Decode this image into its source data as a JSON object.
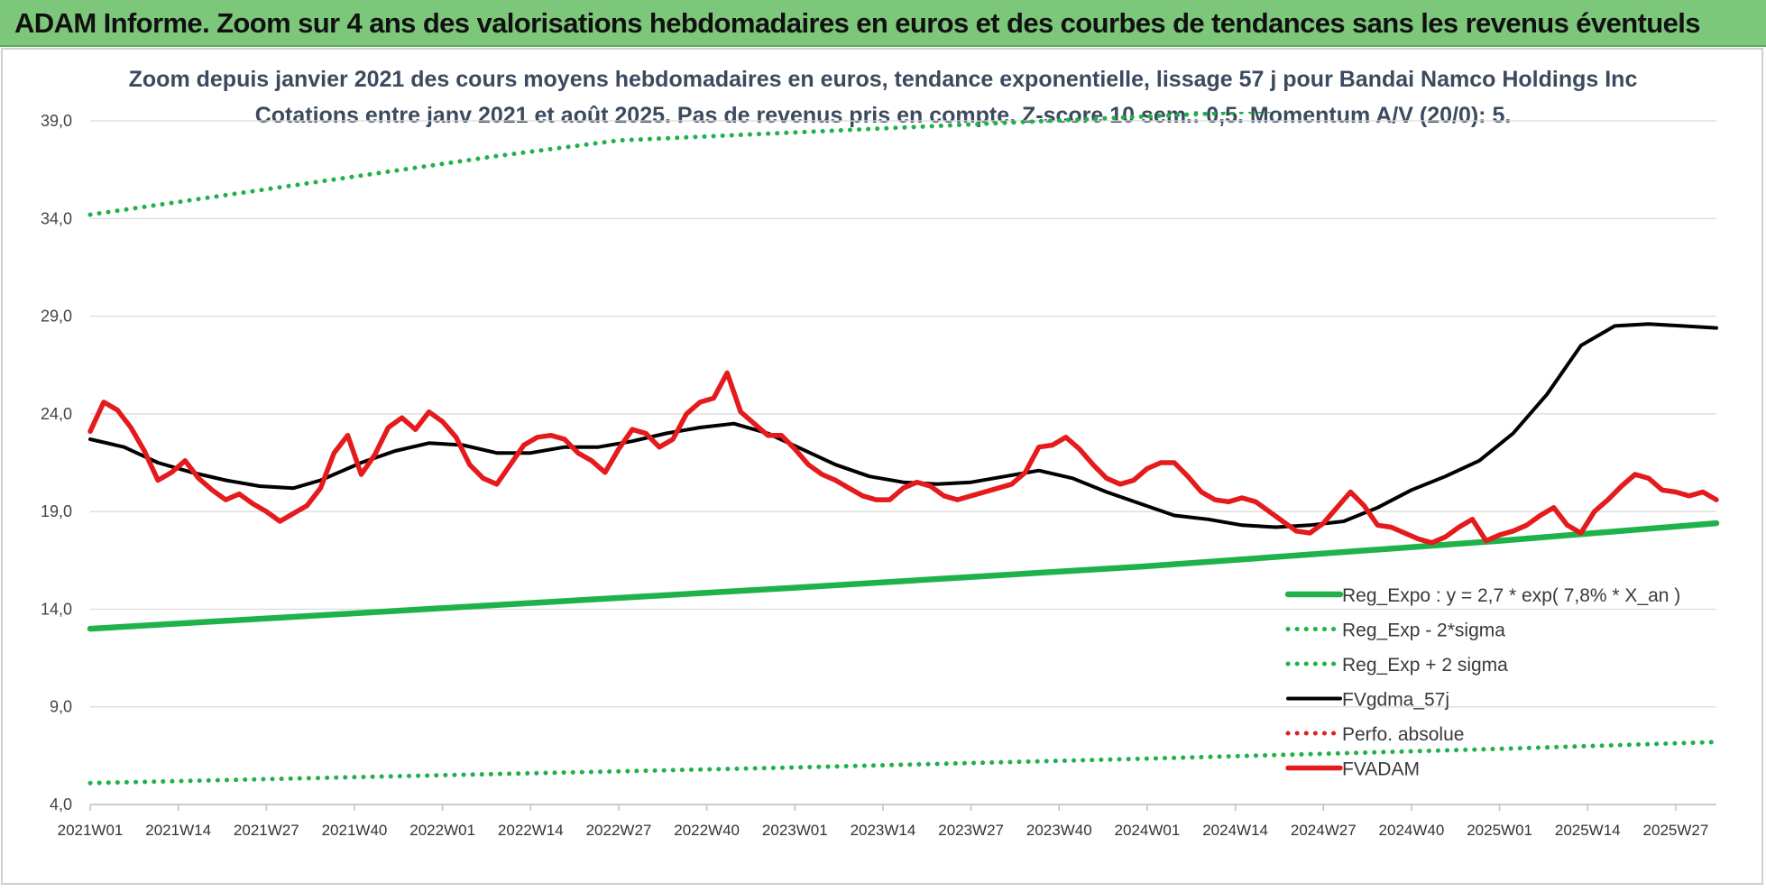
{
  "banner": {
    "title": "ADAM Informe. Zoom sur 4 ans des valorisations hebdomadaires en euros et des courbes de tendances sans les revenus éventuels"
  },
  "colors": {
    "banner_bg": "#7dc77a",
    "reg_expo": "#1fb24a",
    "reg_band": "#1fb24a",
    "fvgdma": "#000000",
    "perfo": "#e02020",
    "fvadam": "#e41a1c",
    "grid": "#d9d9d9"
  },
  "chart_data": {
    "type": "line",
    "title": "Zoom depuis janvier 2021 des cours moyens hebdomadaires en euros, tendance exponentielle, lissage 57 j pour Bandai Namco Holdings Inc",
    "subtitle": "Cotations entre janv 2021 et août 2025. Pas de revenus pris en compte. Z-score 10 sem.: 0,5. Momentum A/V (20/0): 5.",
    "xlabel": "",
    "ylabel": "",
    "ylim": [
      4.0,
      39.0
    ],
    "yticks": [
      "4,0",
      "9,0",
      "14,0",
      "19,0",
      "24,0",
      "29,0",
      "34,0",
      "39,0"
    ],
    "ytick_values": [
      4,
      9,
      14,
      19,
      24,
      29,
      34,
      39
    ],
    "xticks": [
      "2021W01",
      "2021W14",
      "2021W27",
      "2021W40",
      "2022W01",
      "2022W14",
      "2022W27",
      "2022W40",
      "2023W01",
      "2023W14",
      "2023W27",
      "2023W40",
      "2024W01",
      "2024W14",
      "2024W27",
      "2024W40",
      "2025W01",
      "2025W14",
      "2025W27"
    ],
    "n_weeks": 240,
    "grid": true,
    "legend_position": "bottom-right",
    "series": [
      {
        "name": "Reg_Expo : y = 2,7 * exp( 7,8% *  X_an )",
        "style": "solid-thick",
        "color": "#1fb24a",
        "x_weeks": [
          0,
          52,
          104,
          156,
          208,
          240
        ],
        "values": [
          13.0,
          14.05,
          15.1,
          16.2,
          17.5,
          18.4
        ]
      },
      {
        "name": "Reg_Exp - 2*sigma",
        "style": "dotted",
        "color": "#1fb24a",
        "x_weeks": [
          0,
          52,
          104,
          156,
          208,
          240
        ],
        "values": [
          5.1,
          5.5,
          5.9,
          6.35,
          6.85,
          7.2
        ]
      },
      {
        "name": "Reg_Exp + 2 sigma",
        "style": "dotted",
        "color": "#1fb24a",
        "x_weeks": [
          0,
          30,
          60,
          78,
          205,
          240
        ],
        "values": [
          34.2,
          35.7,
          37.2,
          38.0,
          40.0,
          40.0
        ]
      },
      {
        "name": "FVgdma_57j",
        "style": "solid",
        "color": "#000000",
        "x_weeks": [
          0,
          5,
          10,
          15,
          20,
          25,
          30,
          34,
          40,
          45,
          50,
          55,
          60,
          65,
          70,
          75,
          80,
          85,
          90,
          95,
          100,
          105,
          110,
          115,
          120,
          125,
          130,
          135,
          140,
          145,
          150,
          155,
          160,
          165,
          170,
          175,
          180,
          185,
          190,
          195,
          200,
          205,
          210,
          215,
          220,
          225,
          230,
          235,
          240
        ],
        "values": [
          22.7,
          22.3,
          21.5,
          21.0,
          20.6,
          20.3,
          20.2,
          20.6,
          21.5,
          22.1,
          22.5,
          22.4,
          22.0,
          22.0,
          22.3,
          22.3,
          22.6,
          23.0,
          23.3,
          23.5,
          23.0,
          22.2,
          21.4,
          20.8,
          20.5,
          20.4,
          20.5,
          20.8,
          21.1,
          20.7,
          20.0,
          19.4,
          18.8,
          18.6,
          18.3,
          18.2,
          18.3,
          18.5,
          19.2,
          20.1,
          20.8,
          21.6,
          23.0,
          25.0,
          27.5,
          28.5,
          28.6,
          28.5,
          28.4
        ]
      },
      {
        "name": "Perfo. absolue",
        "style": "dotted",
        "color": "#e02020",
        "x_weeks": [],
        "values": []
      },
      {
        "name": "FVADAM",
        "style": "solid-thick",
        "color": "#e41a1c",
        "x_weeks": [
          0,
          2,
          4,
          6,
          8,
          10,
          12,
          14,
          16,
          18,
          20,
          22,
          24,
          26,
          28,
          30,
          32,
          34,
          36,
          38,
          40,
          42,
          44,
          46,
          48,
          50,
          52,
          54,
          56,
          58,
          60,
          62,
          64,
          66,
          68,
          70,
          72,
          74,
          76,
          78,
          80,
          82,
          84,
          86,
          88,
          90,
          92,
          94,
          96,
          98,
          100,
          102,
          104,
          106,
          108,
          110,
          112,
          114,
          116,
          118,
          120,
          122,
          124,
          126,
          128,
          130,
          132,
          134,
          136,
          138,
          140,
          142,
          144,
          146,
          148,
          150,
          152,
          154,
          156,
          158,
          160,
          162,
          164,
          166,
          168,
          170,
          172,
          174,
          176,
          178,
          180,
          182,
          184,
          186,
          188,
          190,
          192,
          194,
          196,
          198,
          200,
          202,
          204,
          206,
          208,
          210,
          212,
          214,
          216,
          218,
          220,
          222,
          224,
          226,
          228,
          230,
          232,
          234,
          236,
          238,
          240
        ],
        "values": [
          23.1,
          24.6,
          24.2,
          23.3,
          22.1,
          20.6,
          21.0,
          21.6,
          20.7,
          20.1,
          19.6,
          19.9,
          19.4,
          19.0,
          18.5,
          18.9,
          19.3,
          20.2,
          22.0,
          22.9,
          20.9,
          21.9,
          23.3,
          23.8,
          23.2,
          24.1,
          23.6,
          22.8,
          21.4,
          20.7,
          20.4,
          21.4,
          22.4,
          22.8,
          22.9,
          22.7,
          22.0,
          21.6,
          21.0,
          22.2,
          23.2,
          23.0,
          22.3,
          22.7,
          24.0,
          24.6,
          24.8,
          26.1,
          24.1,
          23.5,
          22.9,
          22.9,
          22.2,
          21.4,
          20.9,
          20.6,
          20.2,
          19.8,
          19.6,
          19.6,
          20.2,
          20.5,
          20.3,
          19.8,
          19.6,
          19.8,
          20.0,
          20.2,
          20.4,
          21.0,
          22.3,
          22.4,
          22.8,
          22.2,
          21.4,
          20.7,
          20.4,
          20.6,
          21.2,
          21.5,
          21.5,
          20.8,
          20.0,
          19.6,
          19.5,
          19.7,
          19.5,
          19.0,
          18.5,
          18.0,
          17.9,
          18.4,
          19.2,
          20.0,
          19.3,
          18.3,
          18.2,
          17.9,
          17.6,
          17.4,
          17.7,
          18.2,
          18.6,
          17.5,
          17.8,
          18.0,
          18.3,
          18.8,
          19.2,
          18.3,
          17.9,
          19.0,
          19.6,
          20.3,
          20.9,
          20.7,
          20.1,
          20.0,
          19.8,
          20.0,
          19.6
        ]
      }
    ]
  }
}
